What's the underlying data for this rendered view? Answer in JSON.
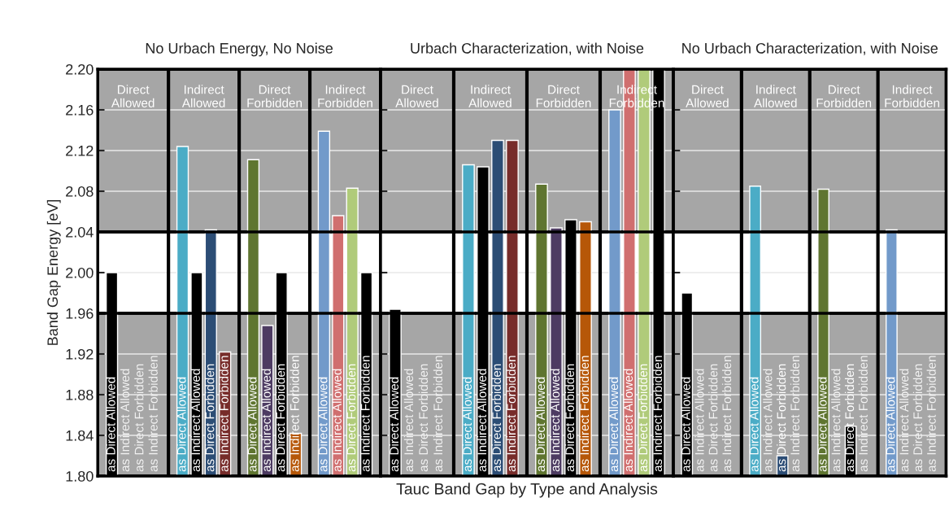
{
  "chart_data": [
    {
      "type": "bar",
      "title": "No Urbach Energy, No Noise",
      "ylabel": "Band Gap Energy [eV]",
      "categories": [
        "Direct Allowed",
        "Indirect Allowed",
        "Direct Forbidden",
        "Indirect Forbidden"
      ],
      "series": [
        {
          "name": "as Direct Allowed",
          "colors": [
            "#000000",
            "#4bacc6",
            "#5f7530",
            "#729aca"
          ],
          "values": [
            2.0,
            2.124,
            2.111,
            2.139
          ]
        },
        {
          "name": "as Indirect Allowed",
          "colors": [
            "#d06f6f",
            "#000000",
            "#4d3b62",
            "#d06f6f"
          ],
          "values": [
            null,
            2.0,
            1.948,
            2.056
          ]
        },
        {
          "name": "as Direct Forbidden",
          "colors": [
            "#b0cb7a",
            "#2c4d75",
            "#000000",
            "#b0cb7a"
          ],
          "values": [
            null,
            2.042,
            2.0,
            2.083
          ]
        },
        {
          "name": "as Indirect Forbidden",
          "colors": [
            "#4d3b62",
            "#772c2a",
            "#b65708",
            "#000000"
          ],
          "values": [
            null,
            1.922,
            1.842,
            2.0
          ]
        }
      ],
      "ylim": [
        1.8,
        2.2
      ],
      "yticks": [
        {
          "value": 1.8,
          "label": "1.80"
        },
        {
          "value": 1.84,
          "label": "1.84"
        },
        {
          "value": 1.88,
          "label": "1.88"
        },
        {
          "value": 1.92,
          "label": "1.92"
        },
        {
          "value": 1.96,
          "label": "1.96"
        },
        {
          "value": 2.0,
          "label": "2.00"
        },
        {
          "value": 2.04,
          "label": "2.04"
        },
        {
          "value": 2.08,
          "label": "2.08"
        },
        {
          "value": 2.12,
          "label": "2.12"
        },
        {
          "value": 2.16,
          "label": "2.16"
        },
        {
          "value": 2.2,
          "label": "2.20"
        }
      ],
      "grid": "y",
      "legend": false,
      "bands": [
        {
          "axis": "y",
          "from": 1.8,
          "to": 1.96,
          "color": "#a6a6a6"
        },
        {
          "axis": "y",
          "from": 2.04,
          "to": 2.2,
          "color": "#a6a6a6"
        }
      ]
    },
    {
      "type": "bar",
      "title": "Urbach Characterization, with Noise",
      "xlabel": "Tauc Band Gap by Type and Analysis",
      "categories": [
        "Direct Allowed",
        "Indirect Allowed",
        "Direct Forbidden",
        "Indirect Forbidden"
      ],
      "series": [
        {
          "name": "as Direct Allowed",
          "colors": [
            "#000000",
            "#4bacc6",
            "#5f7530",
            "#729aca"
          ],
          "values": [
            1.964,
            2.106,
            2.087,
            2.16
          ]
        },
        {
          "name": "as Indirect Allowed",
          "colors": [
            "#d06f6f",
            "#000000",
            "#4d3b62",
            "#d06f6f"
          ],
          "values": [
            null,
            2.104,
            2.044,
            2.2
          ]
        },
        {
          "name": "as Direct Forbidden",
          "colors": [
            "#b0cb7a",
            "#2c4d75",
            "#000000",
            "#b0cb7a"
          ],
          "values": [
            null,
            2.13,
            2.052,
            2.2
          ]
        },
        {
          "name": "as Indirect Forbidden",
          "colors": [
            "#8064a2",
            "#772c2a",
            "#b65708",
            "#000000"
          ],
          "values": [
            null,
            2.13,
            2.05,
            2.2
          ]
        }
      ],
      "ylim": [
        1.8,
        2.2
      ],
      "yticks": [
        1.8,
        1.84,
        1.88,
        1.92,
        1.96,
        2.0,
        2.04,
        2.08,
        2.12,
        2.16,
        2.2
      ],
      "tick_labels": "x",
      "grid": "y",
      "legend": false,
      "bands": [
        {
          "axis": "y",
          "from": 1.8,
          "to": 1.96,
          "color": "#a6a6a6"
        },
        {
          "axis": "y",
          "from": 2.04,
          "to": 2.2,
          "color": "#a6a6a6"
        }
      ]
    },
    {
      "type": "bar",
      "title": "No Urbach Characterization, with Noise",
      "categories": [
        "Direct Allowed",
        "Indirect Allowed",
        "Direct Forbidden",
        "Indirect Forbidden"
      ],
      "series": [
        {
          "name": "as Direct Allowed",
          "colors": [
            "#000000",
            "#4bacc6",
            "#5f7530",
            "#729aca"
          ],
          "values": [
            1.98,
            2.085,
            2.082,
            2.042
          ]
        },
        {
          "name": "as Indirect Allowed",
          "colors": [
            "#d06f6f",
            "#000000",
            "#4d3b62",
            "#d06f6f"
          ],
          "values": [
            null,
            null,
            null,
            null
          ]
        },
        {
          "name": "as Direct Forbidden",
          "colors": [
            "#b0cb7a",
            "#2c4d75",
            "#000000",
            "#b0cb7a"
          ],
          "values": [
            null,
            1.82,
            1.849,
            null
          ]
        },
        {
          "name": "as Indirect Forbidden",
          "colors": [
            "#8064a2",
            "#772c2a",
            "#b65708",
            "#000000"
          ],
          "values": [
            null,
            null,
            null,
            null
          ]
        }
      ],
      "ylim": [
        1.8,
        2.2
      ],
      "yticks": [
        1.8,
        1.84,
        1.88,
        1.92,
        1.96,
        2.0,
        2.04,
        2.08,
        2.12,
        2.16,
        2.2
      ],
      "tick_labels": "x",
      "grid": "y",
      "legend": false,
      "bands": [
        {
          "axis": "y",
          "from": 1.8,
          "to": 1.96,
          "color": "#a6a6a6"
        },
        {
          "axis": "y",
          "from": 2.04,
          "to": 2.2,
          "color": "#a6a6a6"
        }
      ]
    }
  ]
}
